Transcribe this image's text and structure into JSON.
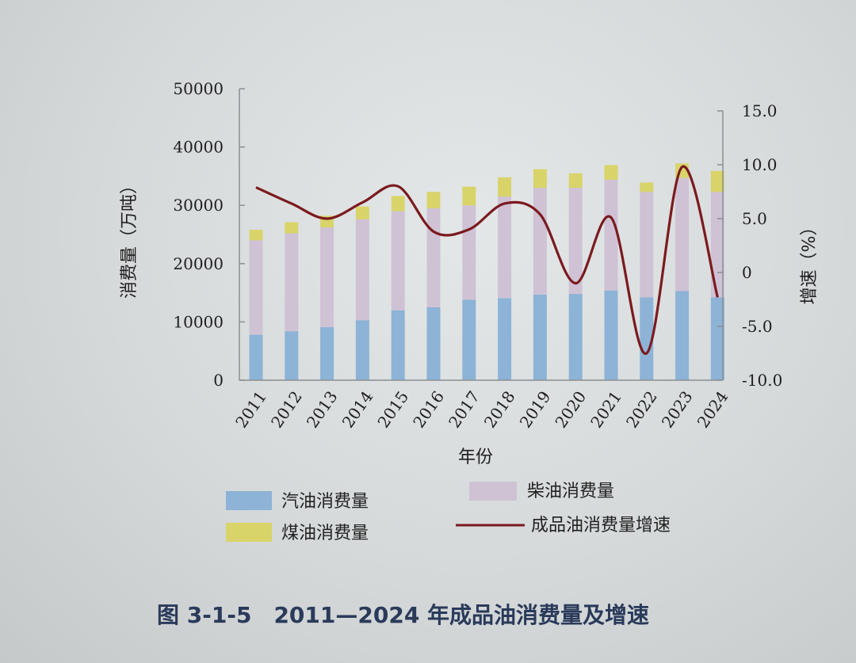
{
  "chart_data": {
    "type": "bar",
    "caption": "图 3-1-5　2011—2024 年成品油消费量及增速",
    "xlabel": "年份",
    "ylabel": "消费量（万吨）",
    "y2label": "增速（%）",
    "ylim": [
      0,
      50000
    ],
    "y2lim": [
      -10,
      15
    ],
    "yticks": [
      "0",
      "10000",
      "20000",
      "30000",
      "40000",
      "50000"
    ],
    "y2ticks": [
      "-10.0",
      "-5.0",
      "0",
      "5.0",
      "10.0",
      "15.0"
    ],
    "categories": [
      "2011",
      "2012",
      "2013",
      "2014",
      "2015",
      "2016",
      "2017",
      "2018",
      "2019",
      "2020",
      "2021",
      "2022",
      "2023",
      "2024"
    ],
    "stacked": true,
    "series": [
      {
        "name": "汽油消费量",
        "type": "bar",
        "axis": "left",
        "color": "#8db3d6",
        "values": [
          7800,
          8400,
          9100,
          10300,
          12000,
          12500,
          13800,
          14100,
          14700,
          14800,
          15400,
          14200,
          15300,
          14200
        ]
      },
      {
        "name": "柴油消费量",
        "type": "bar",
        "axis": "left",
        "color": "#cfc2d4",
        "values": [
          16200,
          16800,
          17100,
          17300,
          17000,
          17000,
          16200,
          17400,
          18300,
          18200,
          19000,
          18100,
          19400,
          18100
        ]
      },
      {
        "name": "煤油消费量",
        "type": "bar",
        "axis": "left",
        "color": "#d8d46a",
        "values": [
          1800,
          1900,
          2000,
          2200,
          2600,
          2800,
          3200,
          3300,
          3200,
          2500,
          2500,
          1600,
          2500,
          3600
        ]
      },
      {
        "name": "成品油消费量增速",
        "type": "line",
        "axis": "right",
        "color": "#7b1a1e",
        "values": [
          7.9,
          6.4,
          5.0,
          6.5,
          8.0,
          3.8,
          4.0,
          6.4,
          5.4,
          -1.0,
          5.1,
          -7.5,
          9.8,
          -2.3
        ]
      }
    ],
    "legend_position": "bottom",
    "grid": false
  }
}
